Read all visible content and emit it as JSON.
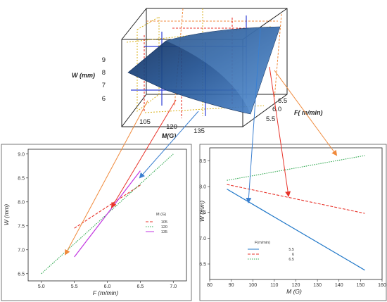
{
  "surface_plot": {
    "z_label": "W (mm)",
    "x_label": "M(G)",
    "y_label": "F( m/min)",
    "z_ticks": [
      "9",
      "8",
      "7",
      "6"
    ],
    "x_ticks": [
      "105",
      "120",
      "135"
    ],
    "y_ticks": [
      "6.5",
      "6.0",
      "5.5"
    ]
  },
  "chart_data": [
    {
      "type": "line",
      "xlabel": "F (m/min)",
      "ylabel": "W (mm)",
      "xlim": [
        4.8,
        7.2
      ],
      "ylim": [
        6.35,
        9.1
      ],
      "xticks": [
        "5.0",
        "5.5",
        "6.0",
        "6.5",
        "7.0"
      ],
      "yticks": [
        "6.5",
        "7.0",
        "7.5",
        "8.0",
        "8.5",
        "9.0"
      ],
      "grid": false,
      "legend_title": "M (G)",
      "legend_position": "center-right",
      "series": [
        {
          "name": "105",
          "color": "#e8332a",
          "dash": "dashed",
          "x": [
            5.5,
            6.5
          ],
          "y": [
            7.45,
            8.35
          ]
        },
        {
          "name": "120",
          "color": "#2fa84f",
          "dash": "dotted",
          "x": [
            5.0,
            7.0
          ],
          "y": [
            6.5,
            9.0
          ]
        },
        {
          "name": "135",
          "color": "#c236e0",
          "dash": "solid",
          "x": [
            5.5,
            6.5
          ],
          "y": [
            6.85,
            8.65
          ]
        }
      ]
    },
    {
      "type": "line",
      "xlabel": "M (G)",
      "ylabel": "W (mm)",
      "xlim": [
        80,
        160
      ],
      "ylim": [
        6.2,
        8.75
      ],
      "xticks": [
        "80",
        "90",
        "100",
        "110",
        "120",
        "130",
        "140",
        "150",
        "160"
      ],
      "yticks": [
        "6.5",
        "7.0",
        "7.5",
        "8.0",
        "8.5"
      ],
      "grid": false,
      "legend_title": "F(m/min)",
      "legend_position": "lower-left",
      "series": [
        {
          "name": "5.5",
          "color": "#1f77c8",
          "dash": "solid",
          "x": [
            88,
            152
          ],
          "y": [
            7.95,
            6.38
          ]
        },
        {
          "name": "6",
          "color": "#e8332a",
          "dash": "dashed",
          "x": [
            88,
            152
          ],
          "y": [
            8.04,
            7.48
          ]
        },
        {
          "name": "6.5",
          "color": "#2fa84f",
          "dash": "dotted",
          "x": [
            88,
            152
          ],
          "y": [
            8.12,
            8.6
          ]
        }
      ]
    }
  ],
  "colors": {
    "surface": "#1f4f8f",
    "callout_orange": "#f08a3c",
    "callout_red": "#e8332a",
    "callout_blue": "#3a7fd0"
  }
}
